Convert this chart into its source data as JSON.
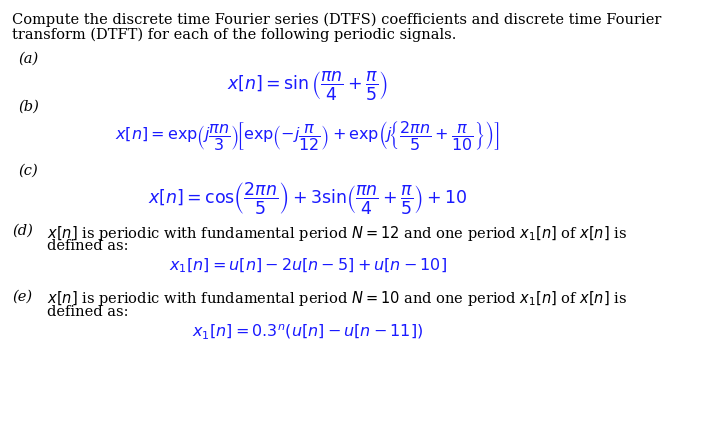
{
  "bg_color": "#ffffff",
  "text_color": "#000000",
  "blue_color": "#1a1aff",
  "title_text": "Compute the discrete time Fourier series (DTFS) coefficients and discrete time Fourier\ntransform (DTFT) for each of the following periodic signals.",
  "label_a": "(a)",
  "eq_a": "x[n] = \\sin\\left(\\dfrac{\\pi n}{4} + \\dfrac{\\pi}{5}\\right)",
  "label_b": "(b)",
  "eq_b": "x[n] = \\exp\\left(j\\dfrac{\\pi n}{3}\\right)\\left[\\exp\\left(-j\\dfrac{\\pi}{12}\\right) + \\exp\\left(j\\left\\{\\dfrac{2\\pi n}{5} + \\dfrac{\\pi}{10}\\right\\}\\right)\\right]",
  "label_c": "(c)",
  "eq_c": "x[n] = \\cos\\left(\\dfrac{2\\pi n}{5}\\right) + 3\\sin\\left(\\dfrac{\\pi n}{4} + \\dfrac{\\pi}{5}\\right) + 10",
  "label_d": "(d)",
  "text_d": "$x[n]$ is periodic with fundamental period $N = 12$ and one period $x_1[n]$ of $x[n]$ is\n        defined as:",
  "eq_d": "x_1[n] = u[n] - 2u[n-5] + u[n-10]",
  "label_e": "(e)",
  "text_e": "$x[n]$ is periodic with fundamental period $N = 10$ and one period $x_1[n]$ of $x[n]$ is\n        defined as:",
  "eq_e": "x_1[n] = 0.3^n(u[n] - u[n-11])"
}
